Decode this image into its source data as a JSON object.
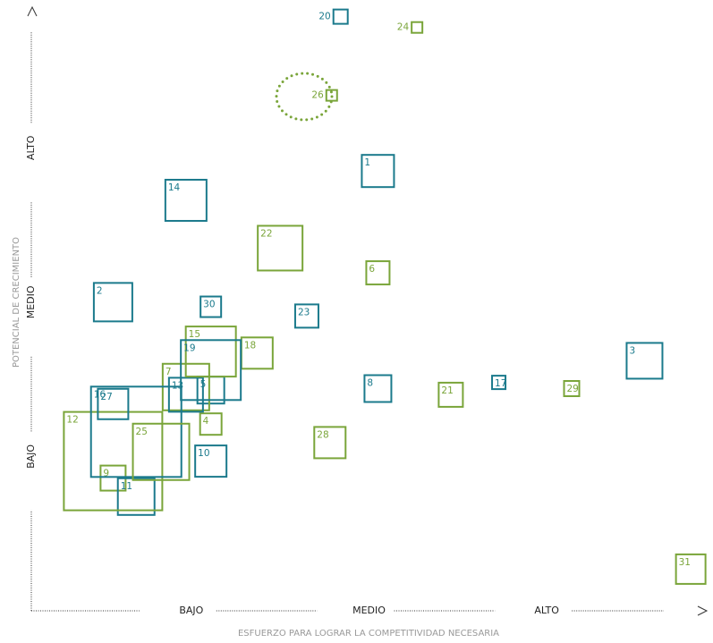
{
  "chart_data": {
    "type": "square-scatter",
    "x_label": "ESFUERZO PARA LOGRAR LA COMPETITIVIDAD NECESARIA",
    "y_label": "POTENCIAL DE CRECIMIENTO",
    "xlim": [
      0.1,
      3.9
    ],
    "ylim": [
      0,
      3.9
    ],
    "xticks": [
      {
        "value": 1,
        "label": "BAJO"
      },
      {
        "value": 2,
        "label": "MEDIO"
      },
      {
        "value": 3,
        "label": "ALTO"
      }
    ],
    "yticks": [
      {
        "value": 1,
        "label": "BAJO"
      },
      {
        "value": 2,
        "label": "MEDIO"
      },
      {
        "value": 3,
        "label": "ALTO"
      }
    ],
    "points": [
      {
        "label": "1",
        "x": 2.05,
        "y": 2.85,
        "size": 36,
        "color": "#1b7a8c"
      },
      {
        "label": "2",
        "x": 0.56,
        "y": 2.0,
        "size": 43,
        "color": "#1b7a8c"
      },
      {
        "label": "3",
        "x": 3.55,
        "y": 1.62,
        "size": 40,
        "color": "#1b7a8c"
      },
      {
        "label": "4",
        "x": 1.11,
        "y": 1.21,
        "size": 24,
        "color": "#7aa53a"
      },
      {
        "label": "5",
        "x": 1.11,
        "y": 1.43,
        "size": 30,
        "color": "#1b7a8c"
      },
      {
        "label": "6",
        "x": 2.05,
        "y": 2.19,
        "size": 26,
        "color": "#7aa53a"
      },
      {
        "label": "7",
        "x": 0.97,
        "y": 1.45,
        "size": 52,
        "color": "#7aa53a"
      },
      {
        "label": "8",
        "x": 2.05,
        "y": 1.44,
        "size": 30,
        "color": "#1b7a8c"
      },
      {
        "label": "9",
        "x": 0.56,
        "y": 0.86,
        "size": 28,
        "color": "#7aa53a"
      },
      {
        "label": "10",
        "x": 1.11,
        "y": 0.97,
        "size": 35,
        "color": "#1b7a8c"
      },
      {
        "label": "11",
        "x": 0.69,
        "y": 0.74,
        "size": 41,
        "color": "#1b7a8c"
      },
      {
        "label": "12",
        "x": 0.56,
        "y": 0.97,
        "size": 110,
        "color": "#7aa53a"
      },
      {
        "label": "13",
        "x": 0.97,
        "y": 1.4,
        "size": 38,
        "color": "#1b7a8c"
      },
      {
        "label": "14",
        "x": 0.97,
        "y": 2.66,
        "size": 46,
        "color": "#1b7a8c"
      },
      {
        "label": "15",
        "x": 1.11,
        "y": 1.68,
        "size": 56,
        "color": "#7aa53a"
      },
      {
        "label": "16",
        "x": 0.69,
        "y": 1.16,
        "size": 101,
        "color": "#1b7a8c"
      },
      {
        "label": "17",
        "x": 2.73,
        "y": 1.48,
        "size": 15,
        "color": "#1b7a8c"
      },
      {
        "label": "18",
        "x": 1.37,
        "y": 1.67,
        "size": 35,
        "color": "#7aa53a"
      },
      {
        "label": "19",
        "x": 1.11,
        "y": 1.56,
        "size": 67,
        "color": "#1b7a8c"
      },
      {
        "label": "20",
        "x": 1.84,
        "y": 3.85,
        "size": 16,
        "color": "#1b7a8c",
        "label_side": "left"
      },
      {
        "label": "21",
        "x": 2.46,
        "y": 1.4,
        "size": 27,
        "color": "#7aa53a"
      },
      {
        "label": "22",
        "x": 1.5,
        "y": 2.35,
        "size": 50,
        "color": "#7aa53a"
      },
      {
        "label": "23",
        "x": 1.65,
        "y": 1.91,
        "size": 26,
        "color": "#1b7a8c"
      },
      {
        "label": "24",
        "x": 2.27,
        "y": 3.78,
        "size": 12,
        "color": "#7aa53a",
        "label_side": "left"
      },
      {
        "label": "25",
        "x": 0.83,
        "y": 1.03,
        "size": 63,
        "color": "#7aa53a"
      },
      {
        "label": "26",
        "x": 1.79,
        "y": 3.34,
        "size": 12,
        "color": "#7aa53a",
        "label_side": "left"
      },
      {
        "label": "27",
        "x": 0.56,
        "y": 1.34,
        "size": 34,
        "color": "#1b7a8c"
      },
      {
        "label": "28",
        "x": 1.78,
        "y": 1.09,
        "size": 35,
        "color": "#7aa53a"
      },
      {
        "label": "29",
        "x": 3.14,
        "y": 1.44,
        "size": 17,
        "color": "#7aa53a"
      },
      {
        "label": "30",
        "x": 1.11,
        "y": 1.97,
        "size": 23,
        "color": "#1b7a8c"
      },
      {
        "label": "31",
        "x": 3.81,
        "y": 0.27,
        "size": 33,
        "color": "#7aa53a"
      }
    ]
  }
}
